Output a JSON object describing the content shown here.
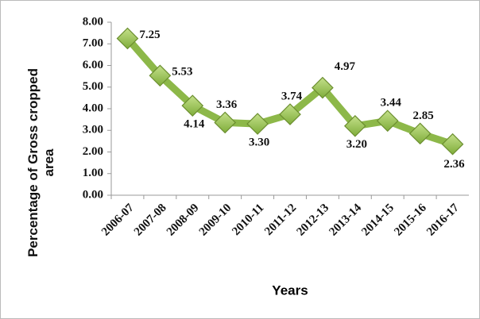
{
  "chart_data": {
    "type": "line",
    "x_label": "Years",
    "y_label": "Percentage of Gross cropped area",
    "categories": [
      "2006-07",
      "2007-08",
      "2008-09",
      "2009-10",
      "2010-11",
      "2011-12",
      "2012-13",
      "2013-14",
      "2014-15",
      "2015-16",
      "2016-17"
    ],
    "series": [
      {
        "color": "#8db849",
        "values": [
          7.25,
          5.53,
          4.14,
          3.36,
          3.3,
          3.74,
          4.97,
          3.2,
          3.44,
          2.85,
          2.36
        ],
        "value_labels": [
          "7.25",
          "5.53",
          "4.14",
          "3.36",
          "3.30",
          "3.74",
          "4.97",
          "3.20",
          "3.44",
          "2.85",
          "2.36"
        ]
      }
    ],
    "ylim": [
      0,
      8
    ],
    "yticks": [
      {
        "value": 0,
        "label": "0.00"
      },
      {
        "value": 1,
        "label": "1.00"
      },
      {
        "value": 2,
        "label": "2.00"
      },
      {
        "value": 3,
        "label": "3.00"
      },
      {
        "value": 4,
        "label": "4.00"
      },
      {
        "value": 5,
        "label": "5.00"
      },
      {
        "value": 6,
        "label": "6.00"
      },
      {
        "value": 7,
        "label": "7.00"
      },
      {
        "value": 8,
        "label": "8.00"
      }
    ]
  }
}
